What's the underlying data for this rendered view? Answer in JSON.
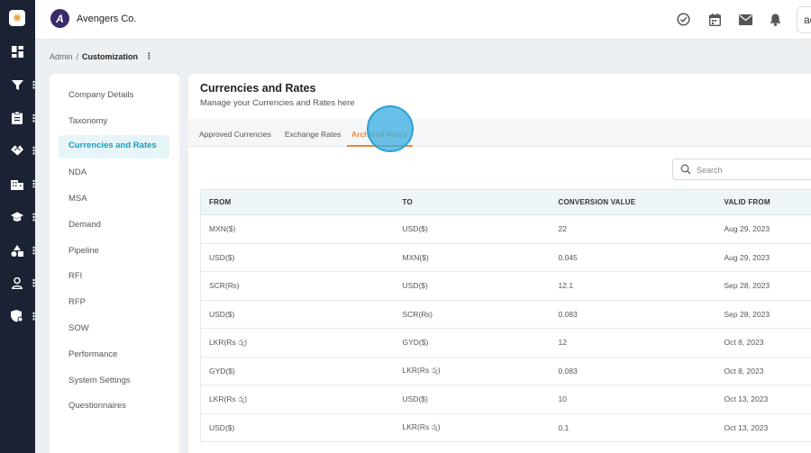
{
  "brand": {
    "name": "Avengers Co.",
    "logo_letter": "A"
  },
  "header": {
    "user_initials": "ac"
  },
  "breadcrumb": {
    "root": "Admin",
    "separator": "/",
    "current": "Customization",
    "menu_glyph": "⋮"
  },
  "settings_menu": {
    "items": [
      {
        "label": "Company Details"
      },
      {
        "label": "Taxonomy"
      },
      {
        "label": "Currencies and Rates",
        "active": true
      },
      {
        "label": "NDA"
      },
      {
        "label": "MSA"
      },
      {
        "label": "Demand"
      },
      {
        "label": "Pipeline"
      },
      {
        "label": "RFI"
      },
      {
        "label": "RFP"
      },
      {
        "label": "SOW"
      },
      {
        "label": "Performance"
      },
      {
        "label": "System Settings"
      },
      {
        "label": "Questionnaires"
      }
    ]
  },
  "page": {
    "title": "Currencies and Rates",
    "subtitle": "Manage your Currencies and Rates here"
  },
  "tabs": [
    {
      "label": "Approved Currencies"
    },
    {
      "label": "Exchange Rates"
    },
    {
      "label": "Archived Rates",
      "active": true
    }
  ],
  "search": {
    "placeholder": "Search",
    "value": ""
  },
  "table": {
    "columns": [
      "FROM",
      "TO",
      "CONVERSION VALUE",
      "VALID FROM"
    ],
    "rows": [
      {
        "from": "MXN($)",
        "to": "USD($)",
        "conversion_value": "22",
        "valid_from": "Aug 29, 2023"
      },
      {
        "from": "USD($)",
        "to": "MXN($)",
        "conversion_value": "0.045",
        "valid_from": "Aug 29, 2023"
      },
      {
        "from": "SCR(₨)",
        "to": "USD($)",
        "conversion_value": "12.1",
        "valid_from": "Sep 28, 2023"
      },
      {
        "from": "USD($)",
        "to": "SCR(₨)",
        "conversion_value": "0.083",
        "valid_from": "Sep 28, 2023"
      },
      {
        "from": "LKR(Rs රු)",
        "to": "GYD($)",
        "conversion_value": "12",
        "valid_from": "Oct 8, 2023"
      },
      {
        "from": "GYD($)",
        "to": "LKR(Rs රු)",
        "conversion_value": "0.083",
        "valid_from": "Oct 8, 2023"
      },
      {
        "from": "LKR(Rs රු)",
        "to": "USD($)",
        "conversion_value": "10",
        "valid_from": "Oct 13, 2023"
      },
      {
        "from": "USD($)",
        "to": "LKR(Rs රු)",
        "conversion_value": "0.1",
        "valid_from": "Oct 13, 2023"
      }
    ]
  },
  "rail": {
    "items": [
      {
        "icon": "dashboard-icon",
        "has_menu": false
      },
      {
        "icon": "filter-icon",
        "has_menu": true
      },
      {
        "icon": "clipboard-icon",
        "has_menu": true
      },
      {
        "icon": "handshake-icon",
        "has_menu": true
      },
      {
        "icon": "building-icon",
        "has_menu": true
      },
      {
        "icon": "graduation-cap-icon",
        "has_menu": true
      },
      {
        "icon": "shapes-icon",
        "has_menu": true
      },
      {
        "icon": "user-icon",
        "has_menu": true
      },
      {
        "icon": "shield-gear-icon",
        "has_menu": true
      }
    ]
  },
  "colors": {
    "rail_bg": "#1a2233",
    "accent_teal": "#1a9bb5",
    "accent_orange": "#e8893a",
    "click_marker": "#3fb0e2"
  }
}
